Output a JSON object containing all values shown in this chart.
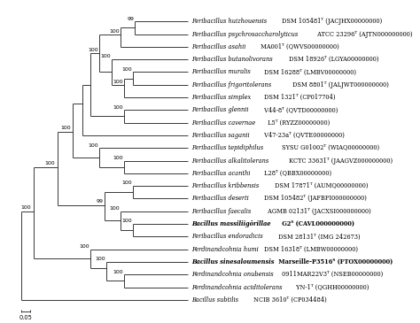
{
  "scale_bar_label": "0.05",
  "taxa": [
    {
      "name": "Peribacillus huizhouensis",
      "strain": " DSM 105481ᵀ (JACJHX00000000)",
      "bold": false,
      "y": 22
    },
    {
      "name": "Peribacillus psychrosaccharolyticus",
      "strain": " ATCC 23296ᵀ (AJTN000000000)",
      "bold": false,
      "y": 21
    },
    {
      "name": "Peribacillus asahii",
      "strain": " MA001ᵀ (QWVS00000000)",
      "bold": false,
      "y": 20
    },
    {
      "name": "Peribacillus butanolivorans",
      "strain": " DSM 18926ᵀ (LGYA00000000)",
      "bold": false,
      "y": 19
    },
    {
      "name": "Peribacillus muralis",
      "strain": " DSM 16288ᵀ (LMBV00000000)",
      "bold": false,
      "y": 18
    },
    {
      "name": "Peribacillus frigoritolerans",
      "strain": " DSM 8801ᵀ (JALJWT000000000)",
      "bold": false,
      "y": 17
    },
    {
      "name": "Peribacillus simplex",
      "strain": " DSM 1321ᵀ (CP017704)",
      "bold": false,
      "y": 16
    },
    {
      "name": "Peribacillus glennii",
      "strain": " V44-8ᵀ (QVTD00000000)",
      "bold": false,
      "y": 15
    },
    {
      "name": "Peribacillus cavernae",
      "strain": " L5ᵀ (RYZZ00000000)",
      "bold": false,
      "y": 14
    },
    {
      "name": "Peribacillus saganii",
      "strain": " V47-23aᵀ (QVTE00000000)",
      "bold": false,
      "y": 13
    },
    {
      "name": "Peribacillus tepidiphilus",
      "strain": " SYSU G01002ᵀ (WIAQ00000000)",
      "bold": false,
      "y": 12
    },
    {
      "name": "Peribacillus alkalitolerans",
      "strain": " KCTC 33631ᵀ (JAAGVZ000000000)",
      "bold": false,
      "y": 11
    },
    {
      "name": "Peribacillus acanthi",
      "strain": " L28ᵀ (QBBX00000000)",
      "bold": false,
      "y": 10
    },
    {
      "name": "Peribacillus kribbensis",
      "strain": " DSM 17871ᵀ (AUMQ00000000)",
      "bold": false,
      "y": 9
    },
    {
      "name": "Peribacillus deserti",
      "strain": " DSM 105482ᵀ (JAFBFI000000000)",
      "bold": false,
      "y": 8
    },
    {
      "name": "Peribacillus faecalis",
      "strain": " AGMB 02131ᵀ (JACXSI000000000)",
      "bold": false,
      "y": 7
    },
    {
      "name": "Bacillus massiliigōrillae",
      "strain": " G2ᵀ (CAVL000000000)",
      "bold": true,
      "y": 6
    },
    {
      "name": "Peribacillus endoradicis",
      "strain": " DSM 28131ᵀ (IMG 242673)",
      "bold": false,
      "y": 5
    },
    {
      "name": "Ferdinandcohnia humi",
      "strain": " DSM 16318ᵀ (LMBW00000000)",
      "bold": false,
      "y": 4
    },
    {
      "name": "Bacillus sinesaloumensis",
      "strain": " Marseille-P3516ᵀ (FTOX00000000)",
      "bold": true,
      "y": 3
    },
    {
      "name": "Ferdinandcohnia onubensis",
      "strain": " 0911MAR22V3ᵀ (NSEB00000000)",
      "bold": false,
      "y": 2
    },
    {
      "name": "Ferdinandcohnia aciditolerans",
      "strain": " YN-1ᵀ (QGHH00000000)",
      "bold": false,
      "y": 1
    },
    {
      "name": "Bacillus subtilis",
      "strain": " NCIB 3610ᵀ (CP034484)",
      "bold": false,
      "y": 0
    }
  ],
  "background": "#ffffff",
  "line_color": "#2a2a2a",
  "text_color": "#000000",
  "font_size": 4.8,
  "label_font_size": 4.5,
  "xlim": [
    -0.05,
    1.55
  ],
  "ylim": [
    -1.2,
    23.5
  ]
}
